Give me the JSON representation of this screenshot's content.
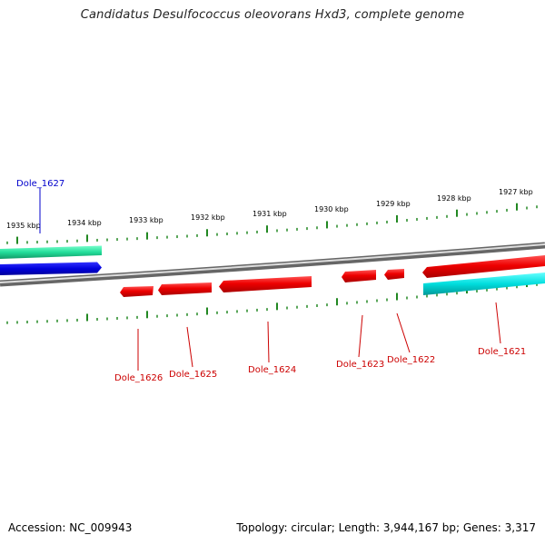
{
  "title": "Candidatus Desulfococcus oleovorans Hxd3, complete genome",
  "footer": {
    "accession": "Accession: NC_009943",
    "summary": "Topology: circular; Length: 3,944,167 bp; Genes: 3,317"
  },
  "ruler": {
    "unit": "kbp",
    "ticks": [
      {
        "value": 1935,
        "label": "1935 kbp"
      },
      {
        "value": 1934,
        "label": "1934 kbp"
      },
      {
        "value": 1933,
        "label": "1933 kbp"
      },
      {
        "value": 1932,
        "label": "1932 kbp"
      },
      {
        "value": 1931,
        "label": "1931 kbp"
      },
      {
        "value": 1930,
        "label": "1930 kbp"
      },
      {
        "value": 1929,
        "label": "1929 kbp"
      },
      {
        "value": 1928,
        "label": "1928 kbp"
      },
      {
        "value": 1927,
        "label": "1927 kbp"
      }
    ]
  },
  "genes": [
    {
      "id": "Dole_1627",
      "strand": "+",
      "color": "#0000cc",
      "feature_color": "#0000dd"
    },
    {
      "id": "Dole_1626",
      "strand": "-",
      "color": "#cc0000",
      "feature_color": "#ee0000"
    },
    {
      "id": "Dole_1625",
      "strand": "-",
      "color": "#cc0000",
      "feature_color": "#ee0000"
    },
    {
      "id": "Dole_1624",
      "strand": "-",
      "color": "#cc0000",
      "feature_color": "#ee0000"
    },
    {
      "id": "Dole_1623",
      "strand": "-",
      "color": "#cc0000",
      "feature_color": "#ee0000"
    },
    {
      "id": "Dole_1622",
      "strand": "-",
      "color": "#cc0000",
      "feature_color": "#ee0000"
    },
    {
      "id": "Dole_1621",
      "strand": "+",
      "color": "#cc0000",
      "feature_color": "#ee0000"
    }
  ],
  "tracks": {
    "outer_teal_color": "#22dd99",
    "inner_cyan_color": "#00dddd",
    "backbone_color": "#777777",
    "tick_color": "#228822"
  }
}
